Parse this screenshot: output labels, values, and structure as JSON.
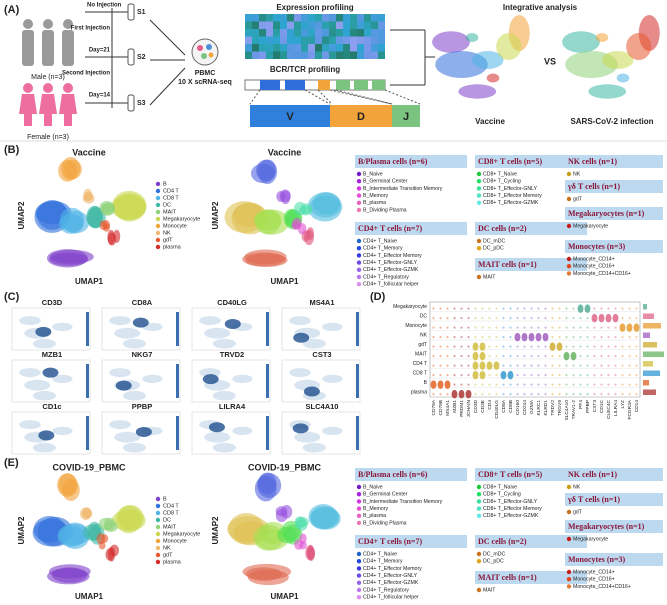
{
  "panel_a": {
    "label": "(A)",
    "male": "Male (n=3)",
    "female": "Female (n=3)",
    "timeline": [
      "No Injection",
      "First Injection",
      "Day=21",
      "Second Injection",
      "Day=14"
    ],
    "samples": [
      "S1",
      "S2",
      "S3"
    ],
    "pbmc": "PBMC",
    "platform": "10 X scRNA-seq",
    "expression": "Expression profiling",
    "repertoire": "BCR/TCR profiling",
    "segments": [
      "V",
      "D",
      "J"
    ],
    "integrative": "Integrative analysis",
    "vs": "VS",
    "conditions": [
      "Vaccine",
      "SARS-CoV-2 infection"
    ]
  },
  "panel_b": {
    "label": "(B)",
    "titles": [
      "Vaccine",
      "Vaccine"
    ]
  },
  "panel_e": {
    "label": "(E)",
    "titles": [
      "COVID-19_PBMC",
      "COVID-19_PBMC"
    ]
  },
  "axes": {
    "x": "UMAP1",
    "y": "UMAP2"
  },
  "cell_types": [
    {
      "name": "B",
      "color": "#7e3fc9"
    },
    {
      "name": "CD4 T",
      "color": "#2f6fdc"
    },
    {
      "name": "CD8 T",
      "color": "#4fb3e6"
    },
    {
      "name": "DC",
      "color": "#3cb8a4"
    },
    {
      "name": "MAIT",
      "color": "#8fd27a"
    },
    {
      "name": "Megakaryocyte",
      "color": "#c9d84e"
    },
    {
      "name": "Monocyte",
      "color": "#f2a33a"
    },
    {
      "name": "NK",
      "color": "#f0b870"
    },
    {
      "name": "gdT",
      "color": "#e8582e"
    },
    {
      "name": "plasma",
      "color": "#d42a2a"
    }
  ],
  "subtypes": [
    {
      "name": "B/Plasma cells (n=6)",
      "items": [
        "B_Naive",
        "B_Germinal Center",
        "B_Intermediate Transition Memory",
        "B_Memory",
        "B_plasma",
        "B_Dividing Plasma"
      ]
    },
    {
      "name": "CD4+ T cells (n=7)",
      "items": [
        "CD4+ T_Naive",
        "CD4+ T_Memory",
        "CD4+ T_Effector Memory",
        "CD4+ T_Effector-GNLY",
        "CD4+ T_Effector-GZMK",
        "CD4+ T_Regulatory",
        "CD4+ T_follicular helper"
      ]
    },
    {
      "name": "CD8+ T cells (n=5)",
      "items": [
        "CD8+ T_Naive",
        "CD8+ T_Cycling",
        "CD8+ T_Effector-GNLY",
        "CD8+ T_Effector Memory",
        "CD8+ T_Effector-GZMK"
      ]
    },
    {
      "name": "DC cells (n=2)",
      "items": [
        "DC_mDC",
        "DC_pDC"
      ]
    },
    {
      "name": "MAIT cells (n=1)",
      "items": [
        "MAIT"
      ]
    },
    {
      "name": "NK cells (n=1)",
      "items": [
        "NK"
      ]
    },
    {
      "name": "γδ T cells (n=1)",
      "items": [
        "gdT"
      ]
    },
    {
      "name": "Megakaryocytes (n=1)",
      "items": [
        "Megakaryocyte"
      ]
    },
    {
      "name": "Monocytes (n=3)",
      "items": [
        "Monocyte_CD14+",
        "Monocyte_CD16+",
        "Monocyte_CD14+CD16+"
      ]
    }
  ],
  "panel_c": {
    "label": "(C)",
    "genes": [
      "CD3D",
      "CD8A",
      "CD40LG",
      "MS4A1",
      "MZB1",
      "NKG7",
      "TRVD2",
      "CST3",
      "CD1c",
      "PPBP",
      "LILRA4",
      "SLC4A10"
    ]
  },
  "panel_d": {
    "label": "(D)",
    "cell_types": [
      "Megakaryocyte",
      "DC",
      "Monocyte",
      "NK",
      "gdT",
      "MAIT",
      "CD4 T",
      "CD8 T",
      "B",
      "plasma"
    ],
    "genes": [
      "CD79A",
      "CD79B",
      "MS4A1",
      "MZB1",
      "PRDM1",
      "JCHAIN",
      "CD3D",
      "CD3E",
      "CD4",
      "CD40LG",
      "CD8A",
      "CD8B",
      "CD160",
      "CD244",
      "GZMA",
      "KLRC1",
      "KLRD1",
      "TRDV2",
      "TRGV9",
      "SLC4A10",
      "TRAV1-2",
      "PF4",
      "PPBP",
      "CST3",
      "CD1C",
      "CLEC4C",
      "LILRA4",
      "LYZ",
      "FCGR3A",
      "CD14"
    ]
  }
}
